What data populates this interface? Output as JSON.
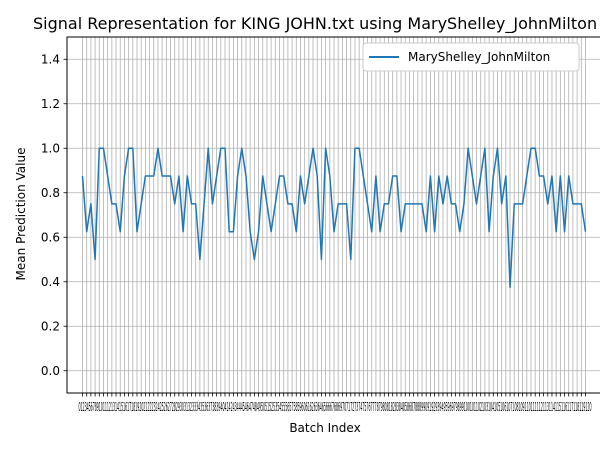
{
  "chart_data": {
    "type": "line",
    "title": "Signal Representation for KING JOHN.txt using MaryShelley_JohnMilton",
    "xlabel": "Batch Index",
    "ylabel": "Mean Prediction Value",
    "xlim": [
      -3.7,
      123.7
    ],
    "ylim": [
      -0.1,
      1.5
    ],
    "yticks": [
      0.0,
      0.2,
      0.4,
      0.6,
      0.8,
      1.0,
      1.2,
      1.4
    ],
    "ytick_labels": [
      "0.0",
      "0.2",
      "0.4",
      "0.6",
      "0.8",
      "1.0",
      "1.2",
      "1.4"
    ],
    "xticks_start": 0,
    "xticks_end": 120,
    "xtick_labels_overlap": "0123456789101112131415161718192021222324252627282930313233343536373839404142434445464748495051525354555657585960616263646566676869707172737475767778798081828384858687888990919293949596979899100101102103104105106107108109110111112113114115116117118119120",
    "grid": true,
    "legend": "top-right",
    "series": [
      {
        "name": "MaryShelley_JohnMilton",
        "color": "#1f77b4",
        "x": [
          0,
          1,
          2,
          3,
          4,
          5,
          6,
          7,
          8,
          9,
          10,
          11,
          12,
          13,
          14,
          15,
          16,
          17,
          18,
          19,
          20,
          21,
          22,
          23,
          24,
          25,
          26,
          27,
          28,
          29,
          30,
          31,
          32,
          33,
          34,
          35,
          36,
          37,
          38,
          39,
          40,
          41,
          42,
          43,
          44,
          45,
          46,
          47,
          48,
          49,
          50,
          51,
          52,
          53,
          54,
          55,
          56,
          57,
          58,
          59,
          60,
          61,
          62,
          63,
          64,
          65,
          66,
          67,
          68,
          69,
          70,
          71,
          72,
          73,
          74,
          75,
          76,
          77,
          78,
          79,
          80,
          81,
          82,
          83,
          84,
          85,
          86,
          87,
          88,
          89,
          90,
          91,
          92,
          93,
          94,
          95,
          96,
          97,
          98,
          99,
          100,
          101,
          102,
          103,
          104,
          105,
          106,
          107,
          108,
          109,
          110,
          111,
          112,
          113,
          114,
          115,
          116,
          117,
          118,
          119,
          120
        ],
        "values": [
          0.875,
          0.625,
          0.75,
          0.5,
          1.0,
          1.0,
          0.875,
          0.75,
          0.75,
          0.625,
          0.875,
          1.0,
          1.0,
          0.625,
          0.75,
          0.875,
          0.875,
          0.875,
          1.0,
          0.875,
          0.875,
          0.875,
          0.75,
          0.875,
          0.625,
          0.875,
          0.75,
          0.75,
          0.5,
          0.75,
          1.0,
          0.75,
          0.875,
          1.0,
          1.0,
          0.625,
          0.625,
          0.875,
          1.0,
          0.875,
          0.625,
          0.5,
          0.625,
          0.875,
          0.75,
          0.625,
          0.75,
          0.875,
          0.875,
          0.75,
          0.75,
          0.625,
          0.875,
          0.75,
          0.875,
          1.0,
          0.875,
          0.5,
          1.0,
          0.875,
          0.625,
          0.75,
          0.75,
          0.75,
          0.5,
          1.0,
          1.0,
          0.875,
          0.75,
          0.625,
          0.875,
          0.625,
          0.75,
          0.75,
          0.875,
          0.875,
          0.625,
          0.75,
          0.75,
          0.75,
          0.75,
          0.75,
          0.625,
          0.875,
          0.625,
          0.875,
          0.75,
          0.875,
          0.75,
          0.75,
          0.625,
          0.75,
          1.0,
          0.875,
          0.75,
          0.875,
          1.0,
          0.625,
          0.875,
          1.0,
          0.75,
          0.875,
          0.375,
          0.75,
          0.75,
          0.75,
          0.875,
          1.0,
          1.0,
          0.875,
          0.875,
          0.75,
          0.875,
          0.625,
          0.875,
          0.625,
          0.875,
          0.75,
          0.75,
          0.75,
          0.625
        ]
      }
    ]
  }
}
